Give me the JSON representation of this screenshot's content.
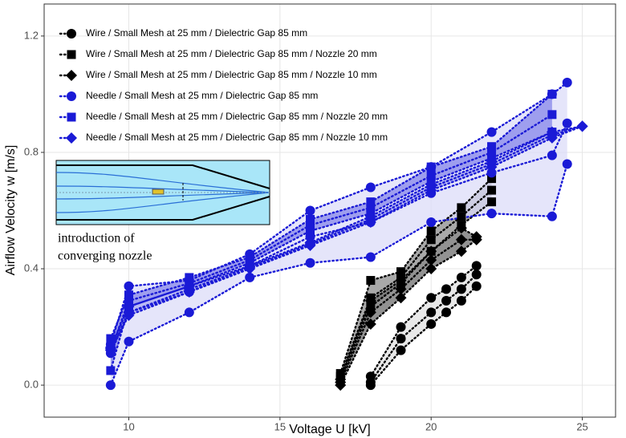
{
  "chart_data": {
    "type": "scatter",
    "xlabel": "Voltage  U  [kV]",
    "ylabel": "Airflow Velocity  w  [m/s]",
    "xlim": [
      7.2,
      26.1
    ],
    "ylim": [
      -0.11,
      1.31
    ],
    "xticks": [
      10,
      15,
      20,
      25
    ],
    "yticks": [
      {
        "value": 0,
        "label": "0.0"
      },
      {
        "value": 0.4,
        "label": "0.4"
      },
      {
        "value": 0.8,
        "label": "0.8"
      },
      {
        "value": 1.2,
        "label": "1.2"
      }
    ],
    "grid": true,
    "legend": "upper left",
    "annotation": [
      "introduction of",
      "converging nozzle"
    ],
    "series": [
      {
        "name": "Wire / Small Mesh at 25 mm / Dielectric Gap 85 mm",
        "color": "#000000",
        "fill": "#e2e2e2",
        "marker": "circle",
        "x": [
          18,
          19,
          20,
          20.5,
          21,
          21.5
        ],
        "lower": [
          0.0,
          0.12,
          0.21,
          0.25,
          0.29,
          0.34
        ],
        "values": [
          0.01,
          0.16,
          0.25,
          0.29,
          0.33,
          0.38
        ],
        "upper": [
          0.03,
          0.2,
          0.3,
          0.33,
          0.37,
          0.41
        ]
      },
      {
        "name": "Wire / Small Mesh at 25 mm / Dielectric Gap 85 mm / Nozzle 20 mm",
        "color": "#000000",
        "fill": "#8c8c8c",
        "marker": "square",
        "x": [
          17,
          18,
          19,
          20,
          21,
          22
        ],
        "lower": [
          0.02,
          0.27,
          0.35,
          0.46,
          0.55,
          0.63
        ],
        "values": [
          0.03,
          0.3,
          0.37,
          0.5,
          0.58,
          0.67
        ],
        "upper": [
          0.04,
          0.36,
          0.39,
          0.53,
          0.61,
          0.71
        ]
      },
      {
        "name": "Wire / Small Mesh at 25 mm / Dielectric Gap 85 mm / Nozzle 10 mm",
        "color": "#000000",
        "fill": "#6e6e6e",
        "marker": "diamond",
        "x": [
          17,
          18,
          19,
          20,
          21,
          21.5
        ],
        "lower": [
          0.0,
          0.21,
          0.3,
          0.4,
          0.46,
          0.5
        ],
        "values": [
          0.01,
          0.25,
          0.33,
          0.43,
          0.5,
          0.5
        ],
        "upper": [
          0.02,
          0.29,
          0.36,
          0.46,
          0.54,
          0.51
        ]
      },
      {
        "name": "Needle / Small Mesh at 25 mm / Dielectric Gap 85 mm",
        "color": "#1a1ad6",
        "fill": "#dcdcf8",
        "marker": "circle",
        "x": [
          9.4,
          10,
          12,
          14,
          16,
          18,
          20,
          22,
          24,
          24.5
        ],
        "lower": [
          0.0,
          0.15,
          0.25,
          0.37,
          0.42,
          0.44,
          0.56,
          0.59,
          0.58,
          0.76
        ],
        "values": [
          0.11,
          0.25,
          0.32,
          0.41,
          0.51,
          0.56,
          0.66,
          0.73,
          0.79,
          0.9
        ],
        "upper": [
          0.14,
          0.34,
          0.36,
          0.45,
          0.6,
          0.68,
          0.75,
          0.87,
          1.0,
          1.04
        ]
      },
      {
        "name": "Needle / Small Mesh at 25 mm / Dielectric Gap 85 mm / Nozzle 20 mm",
        "color": "#1a1ad6",
        "fill": "#8585ea",
        "marker": "square",
        "x": [
          9.4,
          10,
          12,
          14,
          16,
          18,
          20,
          22,
          24
        ],
        "lower": [
          0.05,
          0.27,
          0.34,
          0.42,
          0.53,
          0.59,
          0.7,
          0.78,
          0.87
        ],
        "values": [
          0.12,
          0.29,
          0.35,
          0.43,
          0.55,
          0.61,
          0.72,
          0.8,
          0.93
        ],
        "upper": [
          0.16,
          0.31,
          0.37,
          0.44,
          0.57,
          0.63,
          0.75,
          0.82,
          1.0
        ]
      },
      {
        "name": "Needle / Small Mesh at 25 mm / Dielectric Gap 85 mm / Nozzle 10 mm",
        "color": "#1a1ad6",
        "fill": "#aaaaf2",
        "marker": "diamond",
        "x": [
          9.4,
          10,
          12,
          14,
          16,
          18,
          20,
          22,
          24,
          25
        ],
        "lower": [
          0.12,
          0.24,
          0.32,
          0.4,
          0.48,
          0.56,
          0.67,
          0.75,
          0.85,
          0.89
        ],
        "values": [
          0.125,
          0.25,
          0.33,
          0.405,
          0.485,
          0.57,
          0.68,
          0.76,
          0.86,
          0.89
        ],
        "upper": [
          0.13,
          0.27,
          0.34,
          0.41,
          0.49,
          0.58,
          0.69,
          0.77,
          0.87,
          0.89
        ]
      }
    ]
  }
}
